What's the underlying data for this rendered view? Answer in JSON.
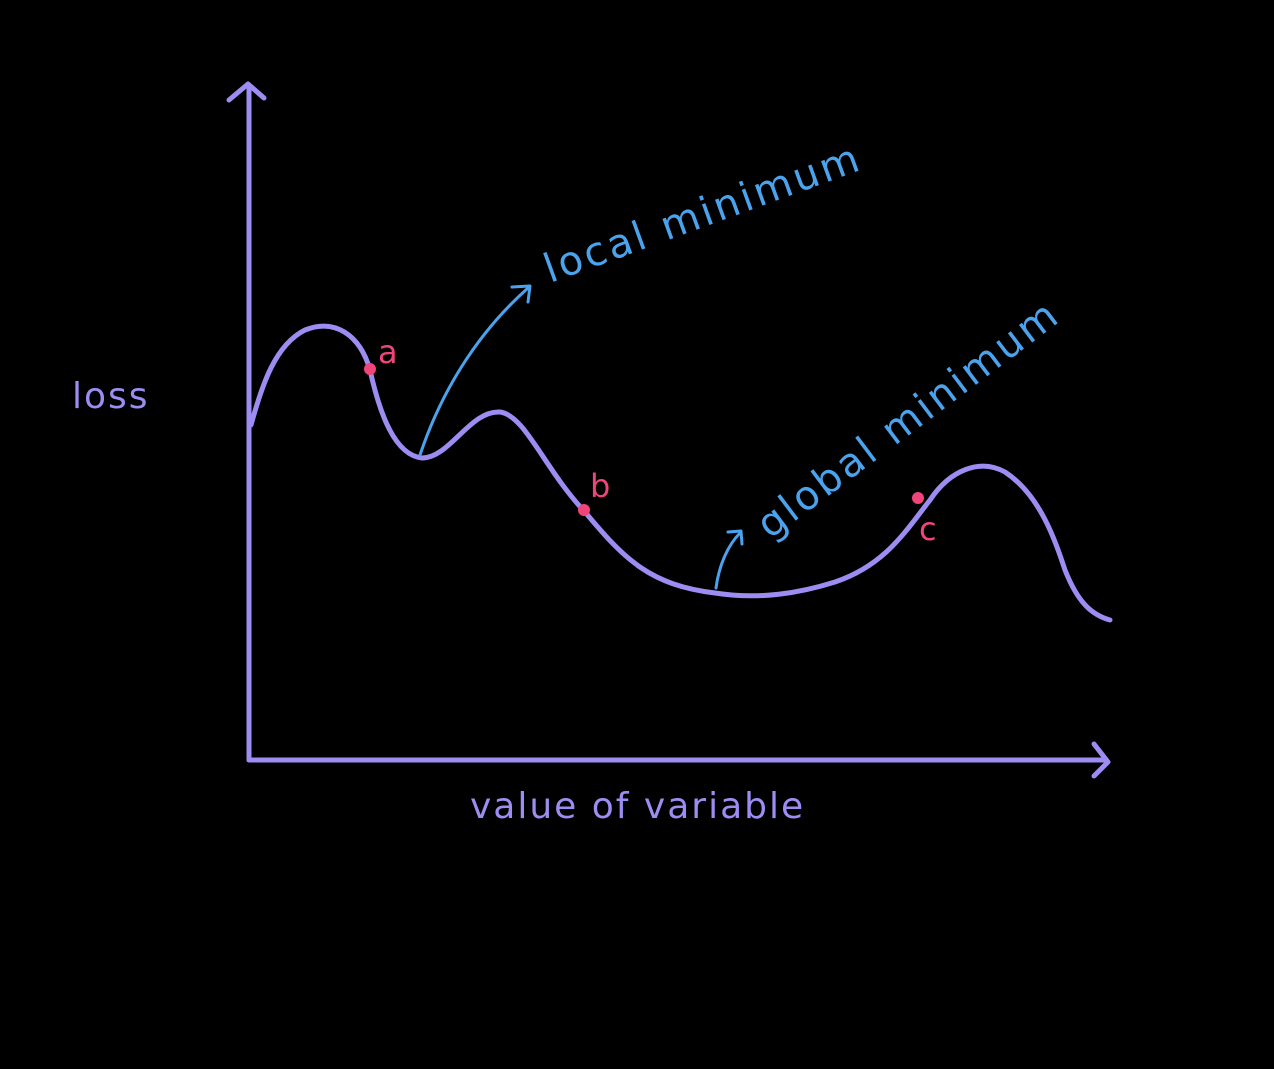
{
  "colors": {
    "background": "#000000",
    "axes_and_curve": "#9d8cf2",
    "annotation": "#4aa3ec",
    "points": "#f0457a"
  },
  "axes": {
    "y_label": "loss",
    "x_label": "value of variable"
  },
  "annotations": {
    "local_minimum": "local minimum",
    "global_minimum": "global minimum"
  },
  "points": [
    {
      "id": "a",
      "label": "a"
    },
    {
      "id": "b",
      "label": "b"
    },
    {
      "id": "c",
      "label": "c"
    }
  ]
}
